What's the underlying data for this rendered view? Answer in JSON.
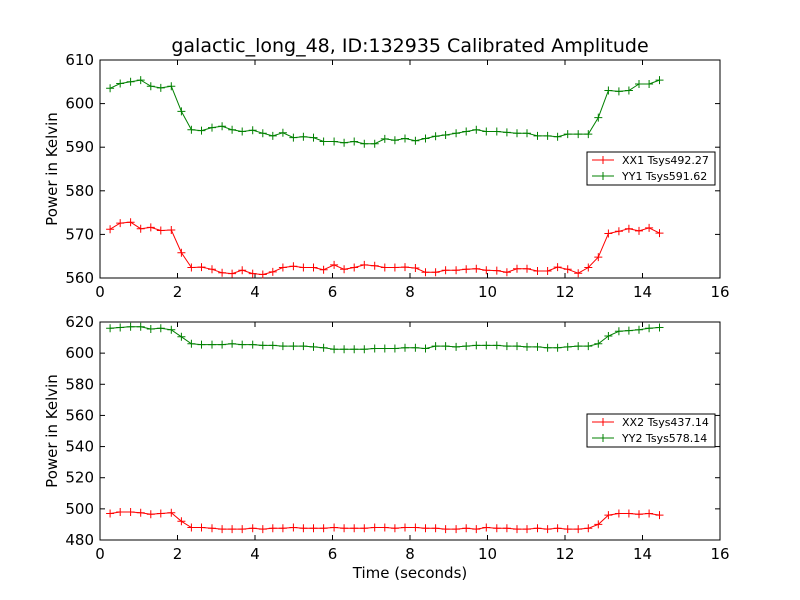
{
  "figure": {
    "title": "galactic_long_48, ID:132935 Calibrated Amplitude"
  },
  "colors": {
    "xx": "#ff0000",
    "yy": "#008000"
  },
  "chart_data": [
    {
      "type": "line",
      "xlabel": "",
      "ylabel": "Power in Kelvin",
      "xlim": [
        0,
        16
      ],
      "ylim": [
        560,
        610
      ],
      "xticks": [
        0,
        2,
        4,
        6,
        8,
        10,
        12,
        14,
        16
      ],
      "yticks": [
        560,
        570,
        580,
        590,
        600,
        610
      ],
      "grid": false,
      "legend_position": "center-right",
      "x": [
        0.26,
        0.52,
        0.79,
        1.05,
        1.31,
        1.57,
        1.84,
        2.1,
        2.36,
        2.62,
        2.89,
        3.15,
        3.41,
        3.67,
        3.94,
        4.2,
        4.46,
        4.72,
        4.99,
        5.25,
        5.51,
        5.77,
        6.04,
        6.3,
        6.56,
        6.82,
        7.09,
        7.35,
        7.61,
        7.87,
        8.14,
        8.4,
        8.66,
        8.92,
        9.19,
        9.45,
        9.71,
        9.97,
        10.24,
        10.5,
        10.76,
        11.02,
        11.29,
        11.55,
        11.81,
        12.07,
        12.34,
        12.6,
        12.86,
        13.12,
        13.39,
        13.65,
        13.91,
        14.17,
        14.44
      ],
      "series": [
        {
          "name": "XX1 Tsys492.27",
          "color": "#ff0000",
          "values": [
            571.2,
            572.6,
            572.8,
            571.3,
            571.6,
            570.9,
            571.0,
            565.8,
            562.4,
            562.5,
            562.0,
            561.2,
            561.0,
            561.8,
            561.0,
            560.8,
            561.4,
            562.4,
            562.7,
            562.4,
            562.4,
            561.9,
            563.0,
            562.0,
            562.4,
            563.0,
            562.8,
            562.4,
            562.4,
            562.5,
            562.3,
            561.3,
            561.3,
            561.8,
            561.8,
            562.0,
            562.1,
            561.8,
            561.7,
            561.3,
            562.1,
            562.1,
            561.6,
            561.6,
            562.5,
            562.0,
            561.1,
            562.4,
            564.8,
            570.2,
            570.7,
            571.3,
            570.8,
            571.5,
            570.3
          ]
        },
        {
          "name": "YY1 Tsys591.62",
          "color": "#008000",
          "values": [
            603.5,
            604.6,
            605.0,
            605.4,
            604.0,
            603.6,
            604.0,
            598.2,
            594.0,
            593.8,
            594.5,
            594.8,
            594.0,
            593.6,
            593.9,
            593.2,
            592.6,
            593.3,
            592.2,
            592.4,
            592.2,
            591.3,
            591.3,
            591.0,
            591.3,
            590.8,
            590.8,
            591.9,
            591.6,
            592.0,
            591.5,
            592.0,
            592.5,
            592.8,
            593.2,
            593.6,
            594.0,
            593.6,
            593.6,
            593.4,
            593.2,
            593.2,
            592.6,
            592.6,
            592.4,
            593.0,
            593.0,
            593.0,
            596.8,
            603.0,
            602.8,
            603.0,
            604.5,
            604.5,
            605.4
          ]
        }
      ]
    },
    {
      "type": "line",
      "xlabel": "Time (seconds)",
      "ylabel": "Power in Kelvin",
      "xlim": [
        0,
        16
      ],
      "ylim": [
        480,
        620
      ],
      "xticks": [
        0,
        2,
        4,
        6,
        8,
        10,
        12,
        14,
        16
      ],
      "yticks": [
        480,
        500,
        520,
        540,
        560,
        580,
        600,
        620
      ],
      "grid": false,
      "legend_position": "center-right",
      "x": [
        0.26,
        0.52,
        0.79,
        1.05,
        1.31,
        1.57,
        1.84,
        2.1,
        2.36,
        2.62,
        2.89,
        3.15,
        3.41,
        3.67,
        3.94,
        4.2,
        4.46,
        4.72,
        4.99,
        5.25,
        5.51,
        5.77,
        6.04,
        6.3,
        6.56,
        6.82,
        7.09,
        7.35,
        7.61,
        7.87,
        8.14,
        8.4,
        8.66,
        8.92,
        9.19,
        9.45,
        9.71,
        9.97,
        10.24,
        10.5,
        10.76,
        11.02,
        11.29,
        11.55,
        11.81,
        12.07,
        12.34,
        12.6,
        12.86,
        13.12,
        13.39,
        13.65,
        13.91,
        14.17,
        14.44
      ],
      "series": [
        {
          "name": "XX2 Tsys437.14",
          "color": "#ff0000",
          "values": [
            497.0,
            498.0,
            498.0,
            497.5,
            496.5,
            497.0,
            497.5,
            492.0,
            488.0,
            488.0,
            487.5,
            487.0,
            487.0,
            487.0,
            487.5,
            487.0,
            487.5,
            487.5,
            488.0,
            487.5,
            487.5,
            487.5,
            488.0,
            487.5,
            487.5,
            487.5,
            488.0,
            488.0,
            487.5,
            488.0,
            488.0,
            487.5,
            487.5,
            487.0,
            487.0,
            487.5,
            487.0,
            488.0,
            487.5,
            487.5,
            487.0,
            487.0,
            487.5,
            487.0,
            487.5,
            487.0,
            487.0,
            487.5,
            490.0,
            496.0,
            497.0,
            497.0,
            496.5,
            497.0,
            496.0
          ]
        },
        {
          "name": "YY2 Tsys578.14",
          "color": "#008000",
          "values": [
            616.0,
            616.5,
            617.0,
            617.0,
            615.5,
            616.0,
            615.0,
            610.5,
            606.0,
            605.5,
            605.5,
            605.5,
            606.0,
            605.5,
            605.5,
            605.0,
            605.0,
            604.5,
            604.5,
            604.5,
            604.0,
            603.5,
            602.5,
            602.5,
            602.5,
            602.5,
            603.0,
            603.0,
            603.0,
            603.5,
            603.5,
            603.0,
            604.5,
            604.5,
            604.0,
            604.5,
            605.0,
            605.0,
            605.0,
            604.5,
            604.5,
            604.0,
            604.0,
            603.5,
            603.5,
            604.0,
            604.5,
            604.5,
            606.0,
            611.0,
            614.0,
            614.5,
            615.0,
            616.0,
            616.5
          ]
        }
      ]
    }
  ]
}
